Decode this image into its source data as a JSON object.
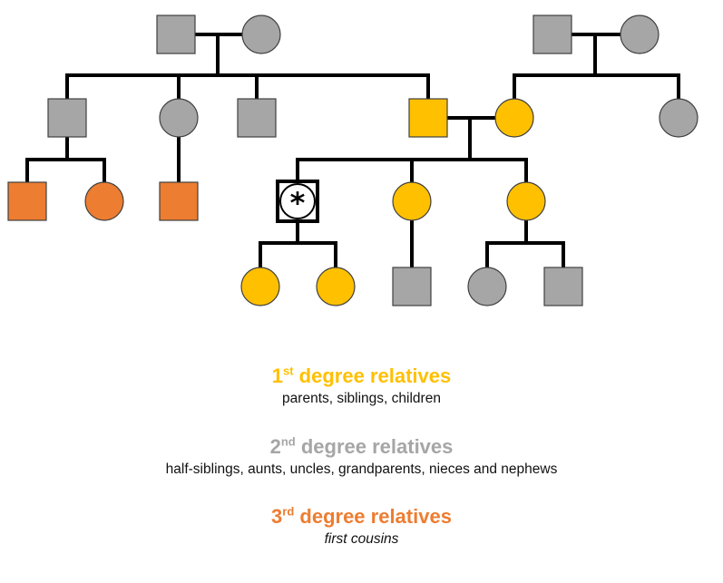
{
  "colors": {
    "first_degree": "#FFC000",
    "second_degree": "#A6A6A6",
    "third_degree": "#ED7D31",
    "proband": "#FFFFFF",
    "line": "#000000"
  },
  "proband_mark": "*",
  "legend": [
    {
      "num": "1",
      "sup": "st",
      "title": " degree relatives",
      "desc": "parents, siblings, children",
      "color_key": "first_degree",
      "italic": false
    },
    {
      "num": "2",
      "sup": "nd",
      "title": " degree relatives",
      "desc": "half-siblings, aunts, uncles, grandparents, nieces and nephews",
      "color_key": "second_degree",
      "italic": false
    },
    {
      "num": "3",
      "sup": "rd",
      "title": " degree relatives",
      "desc": "first cousins",
      "color_key": "third_degree",
      "italic": true
    }
  ],
  "pedigree": {
    "individuals": [
      {
        "id": "pgf",
        "sex": "male",
        "degree": "second_degree"
      },
      {
        "id": "pgm",
        "sex": "female",
        "degree": "second_degree"
      },
      {
        "id": "mgf",
        "sex": "male",
        "degree": "second_degree"
      },
      {
        "id": "mgm",
        "sex": "female",
        "degree": "second_degree"
      },
      {
        "id": "uncle1",
        "sex": "male",
        "degree": "second_degree"
      },
      {
        "id": "aunt1",
        "sex": "female",
        "degree": "second_degree"
      },
      {
        "id": "uncle2",
        "sex": "male",
        "degree": "second_degree"
      },
      {
        "id": "father",
        "sex": "male",
        "degree": "first_degree"
      },
      {
        "id": "mother",
        "sex": "female",
        "degree": "first_degree"
      },
      {
        "id": "aunt2",
        "sex": "female",
        "degree": "second_degree"
      },
      {
        "id": "cousin1",
        "sex": "male",
        "degree": "third_degree"
      },
      {
        "id": "cousin2",
        "sex": "female",
        "degree": "third_degree"
      },
      {
        "id": "cousin3",
        "sex": "male",
        "degree": "third_degree"
      },
      {
        "id": "proband",
        "sex": "male",
        "degree": "proband"
      },
      {
        "id": "sister1",
        "sex": "female",
        "degree": "first_degree"
      },
      {
        "id": "sister2",
        "sex": "female",
        "degree": "first_degree"
      },
      {
        "id": "daughter1",
        "sex": "female",
        "degree": "first_degree"
      },
      {
        "id": "daughter2",
        "sex": "female",
        "degree": "first_degree"
      },
      {
        "id": "nephew1",
        "sex": "male",
        "degree": "second_degree"
      },
      {
        "id": "niece1",
        "sex": "female",
        "degree": "second_degree"
      },
      {
        "id": "nephew2",
        "sex": "male",
        "degree": "second_degree"
      }
    ]
  }
}
